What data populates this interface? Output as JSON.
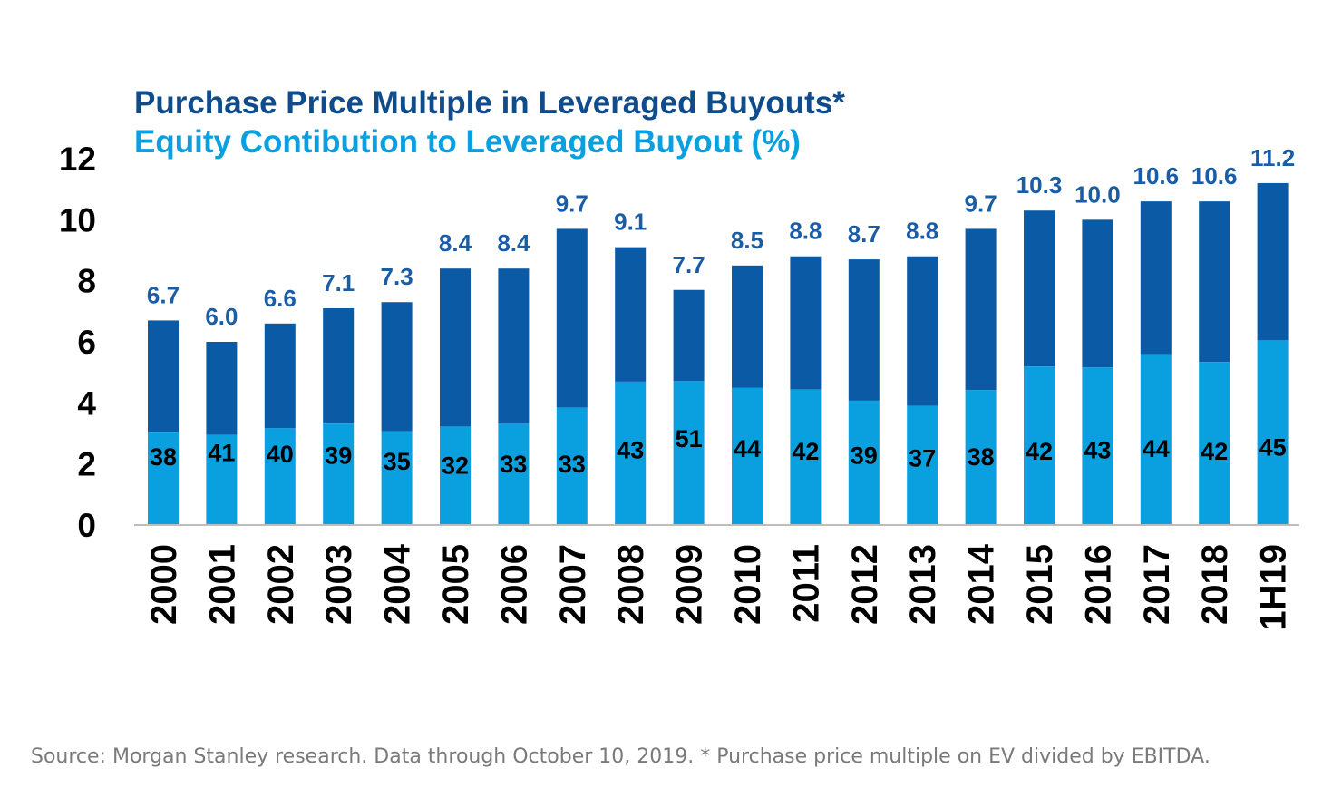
{
  "chart_data": {
    "type": "bar",
    "title": "Purchase Price Multiple in Leveraged Buyouts*",
    "subtitle": "Equity Contibution to Leveraged Buyout (%)",
    "categories": [
      "2000",
      "2001",
      "2002",
      "2003",
      "2004",
      "2005",
      "2006",
      "2007",
      "2008",
      "2009",
      "2010",
      "2011",
      "2012",
      "2013",
      "2014",
      "2015",
      "2016",
      "2017",
      "2018",
      "1H19"
    ],
    "series": [
      {
        "name": "Purchase Price Multiple in Leveraged Buyouts*",
        "values": [
          6.7,
          6.0,
          6.6,
          7.1,
          7.3,
          8.4,
          8.4,
          9.7,
          9.1,
          7.7,
          8.5,
          8.8,
          8.7,
          8.8,
          9.7,
          10.3,
          10.0,
          10.6,
          10.6,
          11.2
        ],
        "labels": [
          "6.7",
          "6.0",
          "6.6",
          "7.1",
          "7.3",
          "8.4",
          "8.4",
          "9.7",
          "9.1",
          "7.7",
          "8.5",
          "8.8",
          "8.7",
          "8.8",
          "9.7",
          "10.3",
          "10.0",
          "10.6",
          "10.6",
          "11.2"
        ],
        "color": "#0a5aa5"
      },
      {
        "name": "Equity Contibution to Leveraged Buyout (%)",
        "values": [
          38,
          41,
          40,
          39,
          35,
          32,
          33,
          33,
          43,
          51,
          44,
          42,
          39,
          37,
          38,
          42,
          43,
          44,
          42,
          45
        ],
        "color": "#0aa0e0"
      }
    ],
    "ylim": [
      0,
      12
    ],
    "yticks": [
      "0",
      "2",
      "4",
      "6",
      "8",
      "10",
      "12"
    ],
    "grid": false,
    "colors": {
      "title": "#0f4c8c",
      "subtitle": "#0aa0e0",
      "value_label": "#1a5da6",
      "axis": "#bdbdbd",
      "text": "#000000"
    }
  },
  "source_note": "Source: Morgan Stanley research. Data through October 10, 2019. * Purchase price multiple on EV divided by EBITDA."
}
